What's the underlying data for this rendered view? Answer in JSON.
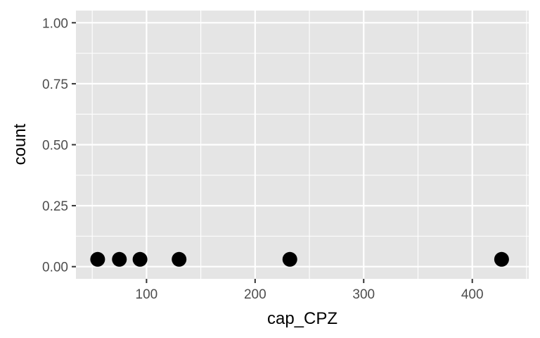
{
  "chart_data": {
    "type": "scatter",
    "xlabel": "cap_CPZ",
    "ylabel": "count",
    "x": [
      55,
      75,
      94,
      130,
      232,
      427
    ],
    "y": [
      0.03,
      0.03,
      0.03,
      0.03,
      0.03,
      0.03
    ],
    "xlim": [
      35,
      452
    ],
    "ylim": [
      -0.05,
      1.05
    ],
    "x_ticks": [
      100,
      200,
      300,
      400
    ],
    "x_tick_labels": [
      "100",
      "200",
      "300",
      "400"
    ],
    "x_minor_ticks": [
      50,
      150,
      250,
      350,
      450
    ],
    "y_ticks": [
      0,
      0.25,
      0.5,
      0.75,
      1
    ],
    "y_tick_labels": [
      "0.00",
      "0.25",
      "0.50",
      "0.75",
      "1.00"
    ],
    "y_minor_ticks": [
      0.125,
      0.375,
      0.625,
      0.875
    ],
    "grid": true,
    "legend": "none",
    "colors": {
      "panel_background": "#e5e5e5",
      "grid": "#ffffff",
      "point": "#000000",
      "tick_text": "#4d4d4d",
      "axis_title": "#000000"
    }
  }
}
